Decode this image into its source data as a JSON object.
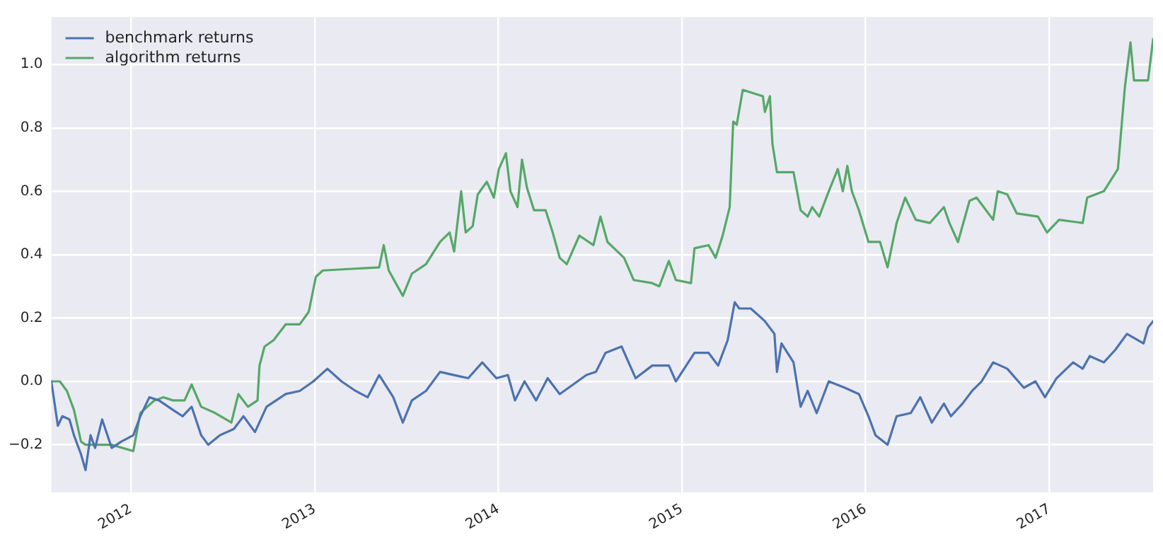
{
  "chart_data": {
    "type": "line",
    "xlim": [
      "2011-07-27",
      "2017-07-26"
    ],
    "xticks": [
      {
        "value": "2012-01-01",
        "label": "2012"
      },
      {
        "value": "2013-01-01",
        "label": "2013"
      },
      {
        "value": "2014-01-01",
        "label": "2014"
      },
      {
        "value": "2015-01-01",
        "label": "2015"
      },
      {
        "value": "2016-01-01",
        "label": "2016"
      },
      {
        "value": "2017-01-01",
        "label": "2017"
      }
    ],
    "ylim": [
      -0.35,
      1.15
    ],
    "yticks": [
      {
        "value": -0.2,
        "label": "−0.2"
      },
      {
        "value": 0,
        "label": "0.0"
      },
      {
        "value": 0.2,
        "label": "0.2"
      },
      {
        "value": 0.4,
        "label": "0.4"
      },
      {
        "value": 0.6,
        "label": "0.6"
      },
      {
        "value": 0.8,
        "label": "0.8"
      },
      {
        "value": 1.0,
        "label": "1.0"
      }
    ],
    "grid": true,
    "legend": "top left",
    "marker": "none",
    "line_style": "solid",
    "series": [
      {
        "name": "benchmark returns",
        "color": "#4c72b0",
        "x": [
          "2011-07-27",
          "2011-08-09",
          "2011-08-18",
          "2011-09-01",
          "2011-09-10",
          "2011-09-24",
          "2011-10-03",
          "2011-10-13",
          "2011-10-22",
          "2011-11-05",
          "2011-11-24",
          "2011-12-13",
          "2012-01-06",
          "2012-01-20",
          "2012-02-07",
          "2012-02-26",
          "2012-03-25",
          "2012-04-13",
          "2012-05-01",
          "2012-05-20",
          "2012-06-03",
          "2012-06-26",
          "2012-07-24",
          "2012-08-12",
          "2012-09-04",
          "2012-09-27",
          "2012-11-04",
          "2012-12-02",
          "2012-12-29",
          "2013-01-26",
          "2013-02-23",
          "2013-03-23",
          "2013-04-16",
          "2013-05-09",
          "2013-06-06",
          "2013-06-25",
          "2013-07-13",
          "2013-08-10",
          "2013-09-07",
          "2013-10-05",
          "2013-11-02",
          "2013-11-30",
          "2013-12-28",
          "2014-01-20",
          "2014-02-03",
          "2014-02-22",
          "2014-03-17",
          "2014-04-09",
          "2014-05-03",
          "2014-06-25",
          "2014-07-14",
          "2014-08-02",
          "2014-09-03",
          "2014-10-01",
          "2014-11-03",
          "2014-12-06",
          "2014-12-20",
          "2015-01-26",
          "2015-02-23",
          "2015-03-14",
          "2015-04-02",
          "2015-04-16",
          "2015-04-25",
          "2015-05-18",
          "2015-06-15",
          "2015-07-04",
          "2015-07-09",
          "2015-07-18",
          "2015-08-11",
          "2015-08-25",
          "2015-09-08",
          "2015-09-26",
          "2015-10-20",
          "2015-11-21",
          "2015-12-19",
          "2016-01-07",
          "2016-01-21",
          "2016-02-14",
          "2016-03-03",
          "2016-03-31",
          "2016-04-19",
          "2016-05-12",
          "2016-06-05",
          "2016-06-19",
          "2016-07-12",
          "2016-07-31",
          "2016-08-19",
          "2016-09-11",
          "2016-10-09",
          "2016-11-11",
          "2016-12-04",
          "2016-12-23",
          "2017-01-15",
          "2017-02-17",
          "2017-03-08",
          "2017-03-22",
          "2017-04-19",
          "2017-05-12",
          "2017-06-04",
          "2017-07-07",
          "2017-07-16",
          "2017-07-26"
        ],
        "values": [
          0,
          -0.14,
          -0.11,
          -0.12,
          -0.17,
          -0.23,
          -0.28,
          -0.17,
          -0.21,
          -0.12,
          -0.21,
          -0.19,
          -0.17,
          -0.11,
          -0.05,
          -0.06,
          -0.09,
          -0.11,
          -0.08,
          -0.17,
          -0.2,
          -0.17,
          -0.15,
          -0.11,
          -0.16,
          -0.08,
          -0.04,
          -0.03,
          0,
          0.04,
          0,
          -0.03,
          -0.05,
          0.02,
          -0.05,
          -0.13,
          -0.06,
          -0.03,
          0.03,
          0.02,
          0.01,
          0.06,
          0.01,
          0.02,
          -0.06,
          0,
          -0.06,
          0.01,
          -0.04,
          0.02,
          0.03,
          0.09,
          0.11,
          0.01,
          0.05,
          0.05,
          0,
          0.09,
          0.09,
          0.05,
          0.13,
          0.25,
          0.23,
          0.23,
          0.19,
          0.15,
          0.03,
          0.12,
          0.06,
          -0.08,
          -0.03,
          -0.1,
          0,
          -0.02,
          -0.04,
          -0.11,
          -0.17,
          -0.2,
          -0.11,
          -0.1,
          -0.05,
          -0.13,
          -0.07,
          -0.11,
          -0.07,
          -0.03,
          0,
          0.06,
          0.04,
          -0.02,
          0,
          -0.05,
          0.01,
          0.06,
          0.04,
          0.08,
          0.06,
          0.1,
          0.15,
          0.12,
          0.17,
          0.19
        ]
      },
      {
        "name": "algorithm returns",
        "color": "#55a868",
        "x": [
          "2011-07-27",
          "2011-08-13",
          "2011-08-27",
          "2011-09-10",
          "2011-09-24",
          "2011-10-03",
          "2011-11-24",
          "2012-01-06",
          "2012-01-20",
          "2012-02-17",
          "2012-03-06",
          "2012-03-25",
          "2012-04-17",
          "2012-05-01",
          "2012-05-20",
          "2012-06-17",
          "2012-07-19",
          "2012-08-02",
          "2012-08-21",
          "2012-09-09",
          "2012-09-13",
          "2012-09-23",
          "2012-10-11",
          "2012-11-04",
          "2012-12-02",
          "2012-12-20",
          "2013-01-03",
          "2013-01-17",
          "2013-05-09",
          "2013-05-18",
          "2013-05-28",
          "2013-06-25",
          "2013-07-13",
          "2013-08-10",
          "2013-09-07",
          "2013-09-26",
          "2013-10-05",
          "2013-10-19",
          "2013-10-28",
          "2013-11-11",
          "2013-11-21",
          "2013-12-09",
          "2013-12-23",
          "2014-01-02",
          "2014-01-16",
          "2014-01-25",
          "2014-02-08",
          "2014-02-17",
          "2014-02-27",
          "2014-03-13",
          "2014-04-05",
          "2014-04-19",
          "2014-05-03",
          "2014-05-17",
          "2014-06-11",
          "2014-07-09",
          "2014-07-23",
          "2014-08-06",
          "2014-09-08",
          "2014-09-27",
          "2014-11-03",
          "2014-11-17",
          "2014-12-06",
          "2014-12-20",
          "2015-01-19",
          "2015-01-26",
          "2015-02-23",
          "2015-03-09",
          "2015-03-23",
          "2015-04-06",
          "2015-04-13",
          "2015-04-20",
          "2015-05-02",
          "2015-06-11",
          "2015-06-15",
          "2015-06-25",
          "2015-06-30",
          "2015-07-09",
          "2015-08-11",
          "2015-08-25",
          "2015-09-08",
          "2015-09-17",
          "2015-10-01",
          "2015-10-20",
          "2015-11-07",
          "2015-11-17",
          "2015-11-26",
          "2015-12-05",
          "2015-12-19",
          "2016-01-07",
          "2016-01-30",
          "2016-02-14",
          "2016-03-03",
          "2016-03-20",
          "2016-04-10",
          "2016-05-08",
          "2016-06-05",
          "2016-06-16",
          "2016-07-03",
          "2016-07-26",
          "2016-08-09",
          "2016-09-11",
          "2016-09-20",
          "2016-10-09",
          "2016-10-28",
          "2016-12-09",
          "2016-12-27",
          "2017-01-20",
          "2017-03-08",
          "2017-03-17",
          "2017-04-19",
          "2017-05-17",
          "2017-05-31",
          "2017-06-11",
          "2017-06-18",
          "2017-07-16",
          "2017-07-26"
        ],
        "values": [
          0,
          0,
          -0.03,
          -0.09,
          -0.19,
          -0.2,
          -0.2,
          -0.22,
          -0.1,
          -0.06,
          -0.05,
          -0.06,
          -0.06,
          -0.01,
          -0.08,
          -0.1,
          -0.13,
          -0.04,
          -0.08,
          -0.06,
          0.05,
          0.11,
          0.13,
          0.18,
          0.18,
          0.22,
          0.33,
          0.35,
          0.36,
          0.43,
          0.35,
          0.27,
          0.34,
          0.37,
          0.44,
          0.47,
          0.41,
          0.6,
          0.47,
          0.49,
          0.59,
          0.63,
          0.58,
          0.67,
          0.72,
          0.6,
          0.55,
          0.7,
          0.61,
          0.54,
          0.54,
          0.47,
          0.39,
          0.37,
          0.46,
          0.43,
          0.52,
          0.44,
          0.39,
          0.32,
          0.31,
          0.3,
          0.38,
          0.32,
          0.31,
          0.42,
          0.43,
          0.39,
          0.46,
          0.55,
          0.82,
          0.81,
          0.92,
          0.9,
          0.85,
          0.9,
          0.75,
          0.66,
          0.66,
          0.54,
          0.52,
          0.55,
          0.52,
          0.6,
          0.67,
          0.6,
          0.68,
          0.6,
          0.54,
          0.44,
          0.44,
          0.36,
          0.5,
          0.58,
          0.51,
          0.5,
          0.55,
          0.5,
          0.44,
          0.57,
          0.58,
          0.51,
          0.6,
          0.59,
          0.53,
          0.52,
          0.47,
          0.51,
          0.5,
          0.58,
          0.6,
          0.67,
          0.93,
          1.07,
          0.95,
          0.95,
          1.08
        ]
      }
    ]
  }
}
